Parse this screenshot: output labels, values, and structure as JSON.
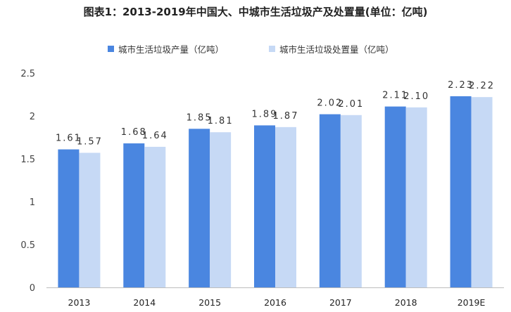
{
  "chart_data": {
    "type": "bar",
    "title": "图表1：2013-2019年中国大、中城市生活垃圾产及处置量(单位：亿吨)",
    "categories": [
      "2013",
      "2014",
      "2015",
      "2016",
      "2017",
      "2018",
      "2019E"
    ],
    "series": [
      {
        "name": "城市生活垃圾产量（亿吨）",
        "values": [
          1.61,
          1.68,
          1.85,
          1.89,
          2.02,
          2.11,
          2.23
        ],
        "color": "#4a86e0"
      },
      {
        "name": "城市生活垃圾处置量（亿吨）",
        "values": [
          1.57,
          1.64,
          1.81,
          1.87,
          2.01,
          2.1,
          2.22
        ],
        "color": "#c6d9f5"
      }
    ],
    "ylim": [
      0,
      2.5
    ],
    "yticks": [
      "0",
      "0.5",
      "1",
      "1.5",
      "2",
      "2.5"
    ],
    "xlabel": "",
    "ylabel": "",
    "grid": false,
    "legend": "top"
  }
}
